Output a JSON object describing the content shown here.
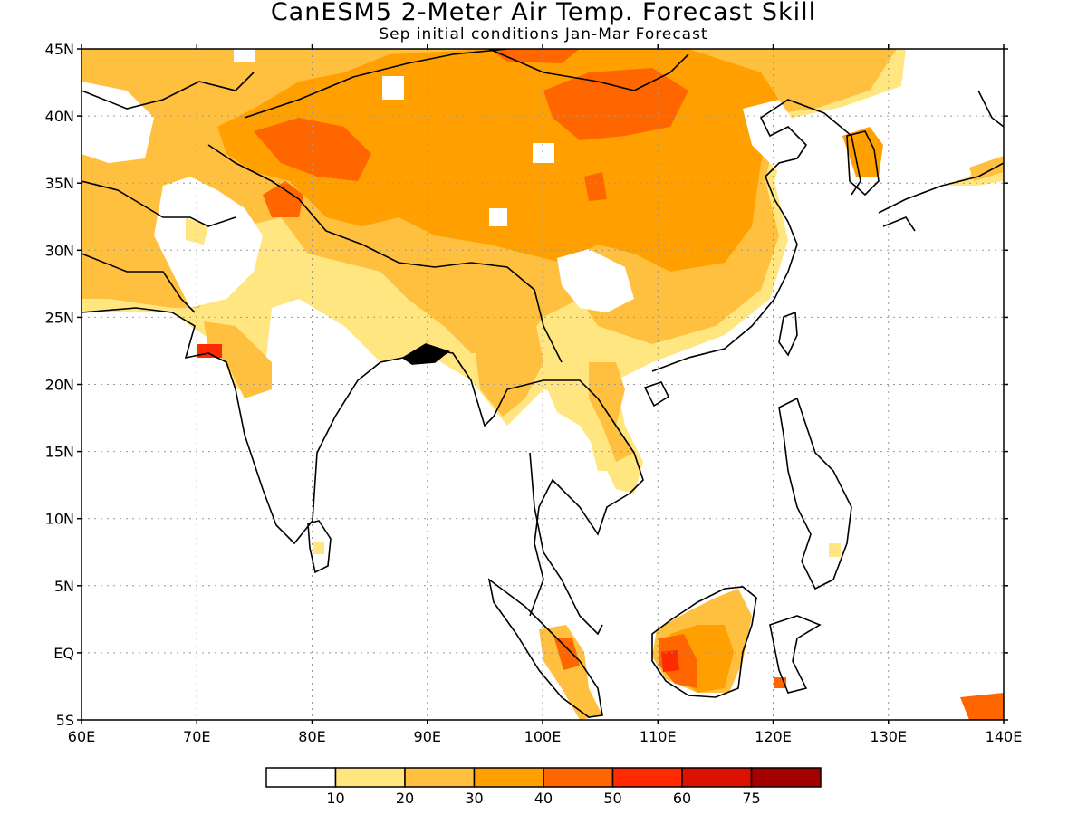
{
  "title": "CanESM5 2-Meter Air Temp. Forecast Skill",
  "subtitle": "Sep initial conditions  Jan-Mar Forecast",
  "lat_labels": [
    "45N",
    "40N",
    "35N",
    "30N",
    "25N",
    "20N",
    "15N",
    "10N",
    "5N",
    "EQ",
    "5S"
  ],
  "lon_labels": [
    "60E",
    "70E",
    "80E",
    "90E",
    "100E",
    "110E",
    "120E",
    "130E",
    "140E"
  ],
  "colorbar": {
    "colors": [
      "#ffffff",
      "#ffe680",
      "#ffbf3f",
      "#ffa000",
      "#ff6600",
      "#ff2a00",
      "#dd1100",
      "#a50000"
    ],
    "labels": [
      "10",
      "20",
      "30",
      "40",
      "50",
      "60",
      "75"
    ]
  },
  "colors": {
    "land_outline": "#000000",
    "grid": "#999999"
  }
}
